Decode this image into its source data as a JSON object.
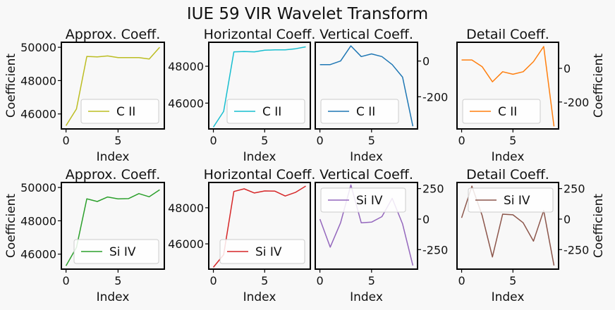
{
  "figure_title": "IUE 59 VIR Wavelet Transform",
  "chart_data": [
    {
      "type": "line",
      "row": 0,
      "col": 0,
      "title": "Approx. Coeff.",
      "xlabel": "Index",
      "ylabel": "Coefficient",
      "y_axis_side": "left",
      "xlim": [
        -0.45,
        9.45
      ],
      "ylim": [
        45100,
        50300
      ],
      "xticks": [
        0,
        5
      ],
      "yticks": [
        46000,
        48000,
        50000
      ],
      "series": [
        {
          "name": "C II",
          "color": "#bcbd22",
          "x": [
            0,
            1,
            2,
            3,
            4,
            5,
            6,
            7,
            8,
            9
          ],
          "values": [
            45300,
            46300,
            49450,
            49420,
            49480,
            49380,
            49380,
            49380,
            49300,
            50000
          ]
        }
      ],
      "legend": "lower-right"
    },
    {
      "type": "line",
      "row": 0,
      "col": 1,
      "title": "Horizontal Coeff.",
      "xlabel": "Index",
      "ylabel": "",
      "y_axis_side": "left",
      "xlim": [
        -0.45,
        9.45
      ],
      "ylim": [
        44600,
        49300
      ],
      "xticks": [
        0,
        5
      ],
      "yticks": [
        46000,
        48000
      ],
      "series": [
        {
          "name": "C II",
          "color": "#17becf",
          "x": [
            0,
            1,
            2,
            3,
            4,
            5,
            6,
            7,
            8,
            9
          ],
          "values": [
            44700,
            45550,
            48780,
            48800,
            48780,
            48870,
            48890,
            48890,
            48950,
            49050
          ]
        }
      ],
      "legend": "lower-right"
    },
    {
      "type": "line",
      "row": 0,
      "col": 2,
      "title": "Vertical Coeff.",
      "xlabel": "Index",
      "ylabel": "",
      "y_axis_side": "right",
      "xlim": [
        -0.45,
        9.45
      ],
      "ylim": [
        -380,
        105
      ],
      "xticks": [
        0,
        5
      ],
      "yticks": [
        -200,
        0
      ],
      "series": [
        {
          "name": "C II",
          "color": "#1f77b4",
          "x": [
            0,
            1,
            2,
            3,
            4,
            5,
            6,
            7,
            8,
            9
          ],
          "values": [
            -20,
            -20,
            0,
            85,
            25,
            40,
            25,
            -20,
            -90,
            -365
          ]
        }
      ],
      "legend": "lower-left"
    },
    {
      "type": "line",
      "row": 0,
      "col": 3,
      "title": "Detail Coeff.",
      "xlabel": "Index",
      "ylabel": "Coefficient",
      "y_axis_side": "right",
      "xlim": [
        -0.45,
        9.45
      ],
      "ylim": [
        -360,
        155
      ],
      "xticks": [
        0,
        5
      ],
      "yticks": [
        -200,
        0
      ],
      "series": [
        {
          "name": "C II",
          "color": "#ff7f0e",
          "x": [
            0,
            1,
            2,
            3,
            4,
            5,
            6,
            7,
            8,
            9
          ],
          "values": [
            50,
            50,
            10,
            -80,
            -20,
            -35,
            -20,
            40,
            130,
            -345
          ]
        }
      ],
      "legend": "lower-left"
    },
    {
      "type": "line",
      "row": 1,
      "col": 0,
      "title": "Approx. Coeff.",
      "xlabel": "Index",
      "ylabel": "Coefficient",
      "y_axis_side": "left",
      "xlim": [
        -0.45,
        9.45
      ],
      "ylim": [
        45100,
        50300
      ],
      "xticks": [
        0,
        5
      ],
      "yticks": [
        46000,
        48000,
        50000
      ],
      "series": [
        {
          "name": "Si IV",
          "color": "#2ca02c",
          "x": [
            0,
            1,
            2,
            3,
            4,
            5,
            6,
            7,
            8,
            9
          ],
          "values": [
            45300,
            46400,
            49320,
            49160,
            49430,
            49320,
            49330,
            49630,
            49440,
            49860
          ]
        }
      ],
      "legend": "lower-right"
    },
    {
      "type": "line",
      "row": 1,
      "col": 1,
      "title": "Horizontal Coeff.",
      "xlabel": "Index",
      "ylabel": "",
      "y_axis_side": "left",
      "xlim": [
        -0.45,
        9.45
      ],
      "ylim": [
        44600,
        49400
      ],
      "xticks": [
        0,
        5
      ],
      "yticks": [
        46000,
        48000
      ],
      "series": [
        {
          "name": "Si IV",
          "color": "#d62728",
          "x": [
            0,
            1,
            2,
            3,
            4,
            5,
            6,
            7,
            8,
            9
          ],
          "values": [
            44700,
            45400,
            48900,
            49050,
            48820,
            48930,
            48920,
            48650,
            48850,
            49200
          ]
        }
      ],
      "legend": "lower-right"
    },
    {
      "type": "line",
      "row": 1,
      "col": 2,
      "title": "Vertical Coeff.",
      "xlabel": "Index",
      "ylabel": "",
      "y_axis_side": "right",
      "xlim": [
        -0.45,
        9.45
      ],
      "ylim": [
        -410,
        300
      ],
      "xticks": [
        0,
        5
      ],
      "yticks": [
        -250,
        0,
        250
      ],
      "series": [
        {
          "name": "Si IV",
          "color": "#9467bd",
          "x": [
            0,
            1,
            2,
            3,
            4,
            5,
            6,
            7,
            8,
            9
          ],
          "values": [
            0,
            -230,
            -30,
            280,
            -30,
            -25,
            20,
            170,
            -40,
            -380
          ]
        }
      ],
      "legend": "upper-left"
    },
    {
      "type": "line",
      "row": 1,
      "col": 3,
      "title": "Detail Coeff.",
      "xlabel": "Index",
      "ylabel": "Coefficient",
      "y_axis_side": "right",
      "xlim": [
        -0.45,
        9.45
      ],
      "ylim": [
        -410,
        300
      ],
      "xticks": [
        0,
        5
      ],
      "yticks": [
        -250,
        0,
        250
      ],
      "series": [
        {
          "name": "Si IV",
          "color": "#8c564b",
          "x": [
            0,
            1,
            2,
            3,
            4,
            5,
            6,
            7,
            8,
            9
          ],
          "values": [
            10,
            270,
            30,
            -310,
            40,
            35,
            -30,
            -180,
            70,
            -380
          ]
        }
      ],
      "legend": "upper-right"
    }
  ]
}
